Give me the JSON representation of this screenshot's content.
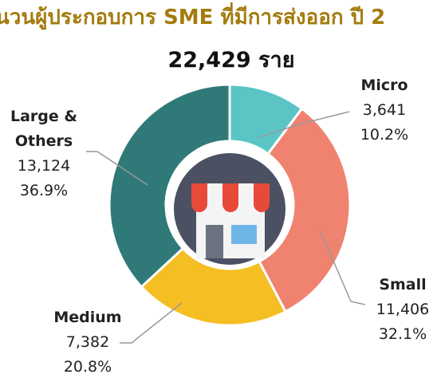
{
  "chart_data": {
    "type": "donut",
    "title": "นวนผู้ประกอบการ SME ที่มีการส่งออก ปี 2",
    "subtitle": "22,429 ราย",
    "categories": [
      "Micro",
      "Small",
      "Medium",
      "Large & Others"
    ],
    "values": [
      3641,
      11406,
      7382,
      13124
    ],
    "value_labels": [
      "3,641",
      "11,406",
      "7,382",
      "13,124"
    ],
    "percent_labels": [
      "10.2%",
      "32.1%",
      "20.8%",
      "36.9%"
    ],
    "colors": [
      "#5bc5c6",
      "#f08270",
      "#f5be22",
      "#2f7a78"
    ]
  }
}
